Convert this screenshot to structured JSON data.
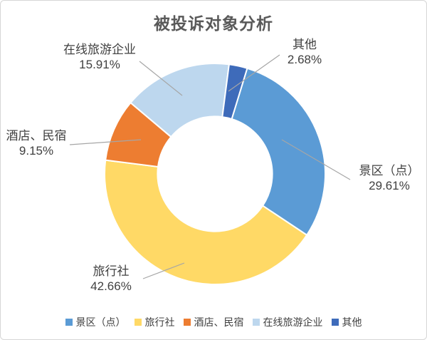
{
  "chart_data": {
    "type": "pie",
    "subtype": "donut",
    "title": "被投诉对象分析",
    "start_angle_deg": 17,
    "clockwise": true,
    "inner_radius_ratio": 0.52,
    "legend_position": "bottom",
    "grid": false,
    "categories": [
      "景区（点）",
      "旅行社",
      "酒店、民宿",
      "在线旅游企业",
      "其他"
    ],
    "values": [
      29.61,
      42.66,
      9.15,
      15.91,
      2.68
    ],
    "slices": [
      {
        "label": "景区（点）",
        "value": 29.61,
        "pct_text": "29.61%",
        "color": "#5B9BD5"
      },
      {
        "label": "旅行社",
        "value": 42.66,
        "pct_text": "42.66%",
        "color": "#FFD966"
      },
      {
        "label": "酒店、民宿",
        "value": 9.15,
        "pct_text": "9.15%",
        "color": "#ED7D31"
      },
      {
        "label": "在线旅游企业",
        "value": 15.91,
        "pct_text": "15.91%",
        "color": "#BDD7EE"
      },
      {
        "label": "其他",
        "value": 2.68,
        "pct_text": "2.68%",
        "color": "#3E6BBA"
      }
    ],
    "colors": {
      "title_text": "#595959",
      "label_text": "#404040",
      "leader_line": "#A6A6A6",
      "slice_separator": "#FFFFFF"
    }
  }
}
